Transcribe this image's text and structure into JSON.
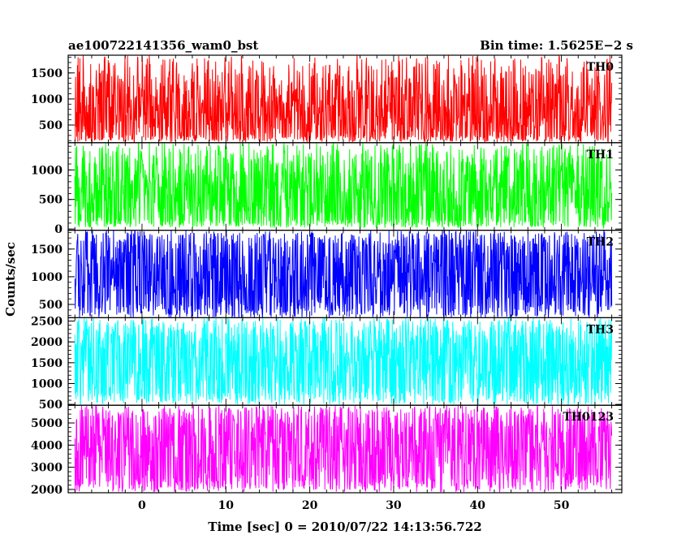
{
  "chart_data": {
    "type": "line",
    "title_left": "ae100722141356_wam0_bst",
    "title_right": "Bin time: 1.5625E−2 s",
    "xlabel": "Time [sec] 0 = 2010/07/22 14:13:56.722",
    "ylabel": "Counts/sec",
    "xlim": [
      -8.8,
      57.2
    ],
    "data_range": [
      -8.0,
      56.0
    ],
    "xticks": [
      0,
      10,
      20,
      30,
      40,
      50
    ],
    "xtick_labels": [
      "0",
      "10",
      "20",
      "30",
      "40",
      "50"
    ],
    "panels": [
      {
        "name": "TH0",
        "color": "#ff0000",
        "ylim": [
          160,
          1840
        ],
        "yticks": [
          500,
          1000,
          1500
        ],
        "ytick_labels": [
          "500",
          "1000",
          "1500"
        ],
        "mean": 750,
        "typical_low": 300,
        "typical_high": 1250,
        "min": 170,
        "max": 1840
      },
      {
        "name": "TH1",
        "color": "#00ff00",
        "ylim": [
          -20,
          1460
        ],
        "yticks": [
          0,
          500,
          1000
        ],
        "ytick_labels": [
          "0",
          "500",
          "1000"
        ],
        "mean": 560,
        "typical_low": 150,
        "typical_high": 1050,
        "min": 20,
        "max": 1460
      },
      {
        "name": "TH2",
        "color": "#0000ff",
        "ylim": [
          260,
          1840
        ],
        "yticks": [
          500,
          1000,
          1500
        ],
        "ytick_labels": [
          "500",
          "1000",
          "1500"
        ],
        "mean": 1000,
        "typical_low": 500,
        "typical_high": 1550,
        "min": 260,
        "max": 1840
      },
      {
        "name": "TH3",
        "color": "#00ffff",
        "ylim": [
          480,
          2580
        ],
        "yticks": [
          500,
          1000,
          1500,
          2000,
          2500
        ],
        "ytick_labels": [
          "500",
          "1000",
          "1500",
          "2000",
          "2500"
        ],
        "mean": 1480,
        "typical_low": 800,
        "typical_high": 2150,
        "min": 500,
        "max": 2580
      },
      {
        "name": "TH0123",
        "color": "#ff00ff",
        "ylim": [
          1850,
          5800
        ],
        "yticks": [
          2000,
          3000,
          4000,
          5000
        ],
        "ytick_labels": [
          "2000",
          "3000",
          "4000",
          "5000"
        ],
        "mean": 3850,
        "typical_low": 2500,
        "typical_high": 5150,
        "min": 1880,
        "max": 5800
      }
    ]
  }
}
